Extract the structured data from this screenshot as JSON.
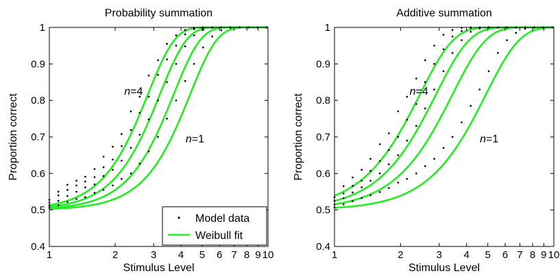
{
  "chart_data": [
    {
      "type": "line",
      "title": "Probability summation",
      "xlabel": "Stimulus Level",
      "ylabel": "Proportion correct",
      "xscale": "log",
      "xlim": [
        1,
        10
      ],
      "ylim": [
        0.4,
        1
      ],
      "xticks": [
        1,
        2,
        3,
        4,
        5,
        6,
        7,
        8,
        9,
        10
      ],
      "xtick_labels": [
        "1",
        "2",
        "3",
        "4",
        "5",
        "6",
        "7",
        "8",
        "9",
        "10"
      ],
      "yticks": [
        0.4,
        0.5,
        0.6,
        0.7,
        0.8,
        0.9,
        1
      ],
      "ytick_labels": [
        "0.4",
        "0.5",
        "0.6",
        "0.7",
        "0.8",
        "0.9",
        "1"
      ],
      "grid": false,
      "legend": {
        "placement": "bottom-right",
        "entries": [
          {
            "label": "Model data",
            "marker": "dot",
            "color": "#000000"
          },
          {
            "label": "Weibull fit",
            "marker": "line",
            "color": "#22ee22"
          }
        ]
      },
      "annotations": [
        {
          "italic": "n",
          "rest": "=4",
          "x": 2.2,
          "y": 0.815
        },
        {
          "italic": "n",
          "rest": "=1",
          "x": 4.2,
          "y": 0.685
        }
      ],
      "weibull_fits": [
        {
          "n": 4,
          "alpha": 2.82,
          "beta": 3.5
        },
        {
          "n": 3,
          "alpha": 3.2,
          "beta": 3.5
        },
        {
          "n": 2,
          "alpha": 3.7,
          "beta": 3.5
        },
        {
          "n": 1,
          "alpha": 4.4,
          "beta": 3.5
        }
      ],
      "model_data_x": [
        1.0,
        1.1,
        1.21,
        1.33,
        1.46,
        1.61,
        1.77,
        1.95,
        2.14,
        2.36,
        2.59,
        2.85,
        3.14,
        3.45,
        3.8,
        4.18,
        4.59,
        5.05,
        5.56,
        6.11,
        6.72,
        7.4,
        8.14,
        8.95,
        9.85
      ],
      "model_data_series": [
        {
          "n": 4,
          "y": [
            0.528,
            0.55,
            0.569,
            0.58,
            0.591,
            0.612,
            0.646,
            0.673,
            0.708,
            0.77,
            0.81,
            0.868,
            0.91,
            0.955,
            0.978,
            0.993,
            0.999,
            1.0,
            1.0,
            1.0,
            1.0,
            1.0,
            1.0,
            1.0,
            1.0
          ]
        },
        {
          "n": 3,
          "y": [
            0.52,
            0.54,
            0.555,
            0.567,
            0.578,
            0.59,
            0.617,
            0.638,
            0.675,
            0.719,
            0.766,
            0.81,
            0.87,
            0.912,
            0.95,
            0.981,
            0.995,
            0.999,
            1.0,
            1.0,
            1.0,
            1.0,
            1.0,
            1.0,
            1.0
          ]
        },
        {
          "n": 2,
          "y": [
            0.512,
            0.525,
            0.538,
            0.55,
            0.562,
            0.57,
            0.593,
            0.61,
            0.635,
            0.67,
            0.706,
            0.748,
            0.8,
            0.85,
            0.9,
            0.948,
            0.978,
            0.993,
            0.999,
            1.0,
            1.0,
            1.0,
            1.0,
            1.0,
            1.0
          ]
        },
        {
          "n": 1,
          "y": [
            0.506,
            0.513,
            0.522,
            0.53,
            0.535,
            0.547,
            0.555,
            0.567,
            0.585,
            0.6,
            0.627,
            0.66,
            0.7,
            0.75,
            0.8,
            0.853,
            0.9,
            0.945,
            0.975,
            0.992,
            0.999,
            1.0,
            1.0,
            1.0,
            1.0
          ]
        }
      ]
    },
    {
      "type": "line",
      "title": "Additive summation",
      "xlabel": "Stimulus Level",
      "ylabel": "Proportion correct",
      "xscale": "log",
      "xlim": [
        1,
        10
      ],
      "ylim": [
        0.4,
        1
      ],
      "xticks": [
        1,
        2,
        3,
        4,
        5,
        6,
        7,
        8,
        9,
        10
      ],
      "xtick_labels": [
        "1",
        "2",
        "3",
        "4",
        "5",
        "6",
        "7",
        "8",
        "9",
        "10"
      ],
      "yticks": [
        0.4,
        0.5,
        0.6,
        0.7,
        0.8,
        0.9,
        1
      ],
      "ytick_labels": [
        "0.4",
        "0.5",
        "0.6",
        "0.7",
        "0.8",
        "0.9",
        "1"
      ],
      "grid": false,
      "legend": null,
      "annotations": [
        {
          "italic": "n",
          "rest": "=4",
          "x": 2.2,
          "y": 0.815
        },
        {
          "italic": "n",
          "rest": "=1",
          "x": 4.6,
          "y": 0.685
        }
      ],
      "weibull_fits": [
        {
          "n": 4,
          "alpha": 2.45,
          "beta": 2.8
        },
        {
          "n": 3,
          "alpha": 2.9,
          "beta": 2.8
        },
        {
          "n": 2,
          "alpha": 3.45,
          "beta": 2.8
        },
        {
          "n": 1,
          "alpha": 4.9,
          "beta": 2.8
        }
      ],
      "model_data_x": [
        1.0,
        1.1,
        1.21,
        1.33,
        1.46,
        1.61,
        1.77,
        1.95,
        2.14,
        2.36,
        2.59,
        2.85,
        3.14,
        3.45,
        3.8,
        4.18,
        4.59,
        5.05,
        5.56,
        6.11,
        6.72,
        7.4,
        8.14,
        8.95,
        9.85
      ],
      "model_data_series": [
        {
          "n": 4,
          "y": [
            0.535,
            0.565,
            0.589,
            0.61,
            0.64,
            0.68,
            0.71,
            0.77,
            0.81,
            0.86,
            0.91,
            0.95,
            0.98,
            0.993,
            0.999,
            1.0,
            1.0,
            1.0,
            1.0,
            1.0,
            1.0,
            1.0,
            1.0,
            1.0,
            1.0
          ]
        },
        {
          "n": 3,
          "y": [
            0.525,
            0.545,
            0.566,
            0.58,
            0.607,
            0.634,
            0.664,
            0.7,
            0.747,
            0.79,
            0.85,
            0.9,
            0.94,
            0.975,
            0.99,
            0.998,
            1.0,
            1.0,
            1.0,
            1.0,
            1.0,
            1.0,
            1.0,
            1.0,
            1.0
          ]
        },
        {
          "n": 2,
          "y": [
            0.515,
            0.532,
            0.548,
            0.562,
            0.58,
            0.6,
            0.625,
            0.65,
            0.69,
            0.73,
            0.778,
            0.83,
            0.88,
            0.93,
            0.965,
            0.988,
            0.997,
            1.0,
            1.0,
            1.0,
            1.0,
            1.0,
            1.0,
            1.0,
            1.0
          ]
        },
        {
          "n": 1,
          "y": [
            0.507,
            0.515,
            0.524,
            0.533,
            0.54,
            0.549,
            0.56,
            0.575,
            0.585,
            0.6,
            0.62,
            0.64,
            0.67,
            0.7,
            0.74,
            0.785,
            0.83,
            0.88,
            0.93,
            0.965,
            0.985,
            0.996,
            0.999,
            1.0,
            1.0
          ]
        }
      ]
    }
  ],
  "style": {
    "fit_color": "#22ee22",
    "dot_color": "#000000",
    "axis_color": "#000000",
    "background": "#ffffff"
  }
}
